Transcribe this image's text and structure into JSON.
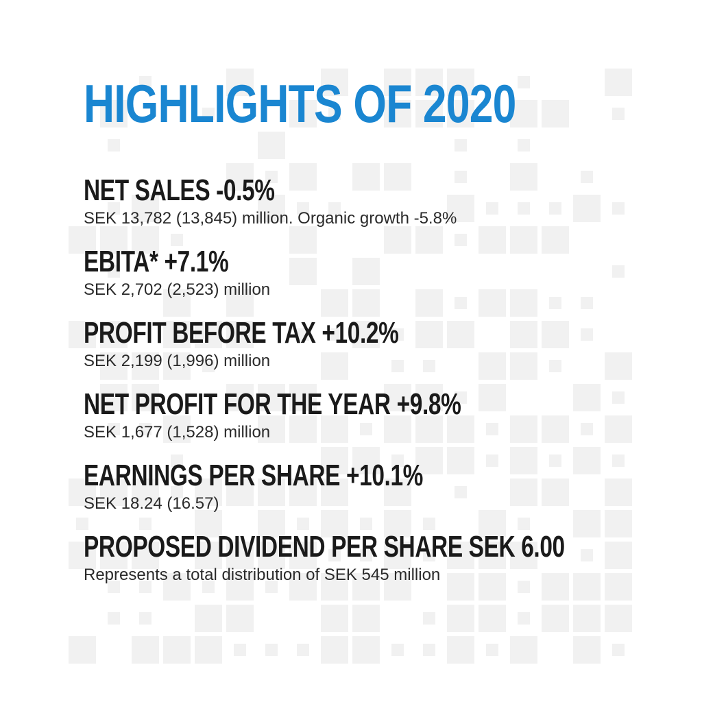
{
  "title": "HIGHLIGHTS OF 2020",
  "colors": {
    "title": "#1a86d1",
    "heading": "#1a1a1a",
    "detail": "#2a2a2a",
    "pattern": "#f1f1f1"
  },
  "highlights": [
    {
      "heading": "NET SALES -0.5%",
      "detail": "SEK 13,782 (13,845) million. Organic growth -5.8%"
    },
    {
      "heading": "EBITA* +7.1%",
      "detail": "SEK 2,702 (2,523) million"
    },
    {
      "heading": "PROFIT BEFORE TAX +10.2%",
      "detail": "SEK 2,199 (1,996) million"
    },
    {
      "heading": "NET PROFIT FOR THE YEAR +9.8%",
      "detail": "SEK 1,677 (1,528) million"
    },
    {
      "heading": "EARNINGS PER SHARE +10.1%",
      "detail": "SEK 18.24 (16.57)"
    },
    {
      "heading": "PROPOSED DIVIDEND PER SHARE SEK 6.00",
      "detail": "Represents a total distribution of SEK 545 million"
    }
  ]
}
